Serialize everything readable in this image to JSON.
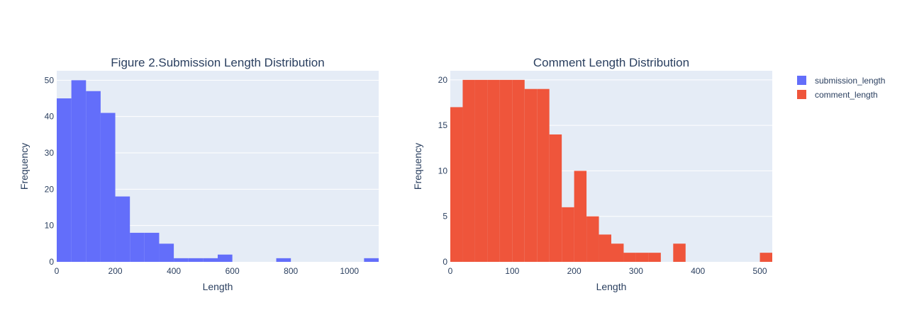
{
  "legend": {
    "items": [
      {
        "label": "submission_length",
        "color": "#636efa"
      },
      {
        "label": "comment_length",
        "color": "#ef553b"
      }
    ]
  },
  "chart_data": [
    {
      "type": "bar",
      "title": "Figure 2.Submission Length Distribution",
      "xlabel": "Length",
      "ylabel": "Frequency",
      "xlim": [
        0,
        1100
      ],
      "ylim": [
        0,
        52.6
      ],
      "xticks": [
        0,
        200,
        400,
        600,
        800,
        1000
      ],
      "yticks": [
        0,
        10,
        20,
        30,
        40,
        50
      ],
      "bin_size": 50,
      "series": [
        {
          "name": "submission_length",
          "color": "#636efa",
          "bins": [
            {
              "x0": 0,
              "x1": 50,
              "count": 45
            },
            {
              "x0": 50,
              "x1": 100,
              "count": 50
            },
            {
              "x0": 100,
              "x1": 150,
              "count": 47
            },
            {
              "x0": 150,
              "x1": 200,
              "count": 41
            },
            {
              "x0": 200,
              "x1": 250,
              "count": 18
            },
            {
              "x0": 250,
              "x1": 300,
              "count": 8
            },
            {
              "x0": 300,
              "x1": 350,
              "count": 8
            },
            {
              "x0": 350,
              "x1": 400,
              "count": 5
            },
            {
              "x0": 400,
              "x1": 450,
              "count": 1
            },
            {
              "x0": 450,
              "x1": 500,
              "count": 1
            },
            {
              "x0": 500,
              "x1": 550,
              "count": 1
            },
            {
              "x0": 550,
              "x1": 600,
              "count": 2
            },
            {
              "x0": 750,
              "x1": 800,
              "count": 1
            },
            {
              "x0": 1050,
              "x1": 1100,
              "count": 1
            }
          ]
        }
      ]
    },
    {
      "type": "bar",
      "title": "Comment Length Distribution",
      "xlabel": "Length",
      "ylabel": "Frequency",
      "xlim": [
        0,
        520
      ],
      "ylim": [
        0,
        21
      ],
      "xticks": [
        0,
        100,
        200,
        300,
        400,
        500
      ],
      "yticks": [
        0,
        5,
        10,
        15,
        20
      ],
      "bin_size": 20,
      "series": [
        {
          "name": "comment_length",
          "color": "#ef553b",
          "bins": [
            {
              "x0": 0,
              "x1": 20,
              "count": 17
            },
            {
              "x0": 20,
              "x1": 40,
              "count": 20
            },
            {
              "x0": 40,
              "x1": 60,
              "count": 20
            },
            {
              "x0": 60,
              "x1": 80,
              "count": 20
            },
            {
              "x0": 80,
              "x1": 100,
              "count": 20
            },
            {
              "x0": 100,
              "x1": 120,
              "count": 20
            },
            {
              "x0": 120,
              "x1": 140,
              "count": 19
            },
            {
              "x0": 140,
              "x1": 160,
              "count": 19
            },
            {
              "x0": 160,
              "x1": 180,
              "count": 14
            },
            {
              "x0": 180,
              "x1": 200,
              "count": 6
            },
            {
              "x0": 200,
              "x1": 220,
              "count": 10
            },
            {
              "x0": 220,
              "x1": 240,
              "count": 5
            },
            {
              "x0": 240,
              "x1": 260,
              "count": 3
            },
            {
              "x0": 260,
              "x1": 280,
              "count": 2
            },
            {
              "x0": 280,
              "x1": 300,
              "count": 1
            },
            {
              "x0": 300,
              "x1": 320,
              "count": 1
            },
            {
              "x0": 320,
              "x1": 340,
              "count": 1
            },
            {
              "x0": 360,
              "x1": 380,
              "count": 2
            },
            {
              "x0": 500,
              "x1": 520,
              "count": 1
            }
          ]
        }
      ]
    }
  ]
}
